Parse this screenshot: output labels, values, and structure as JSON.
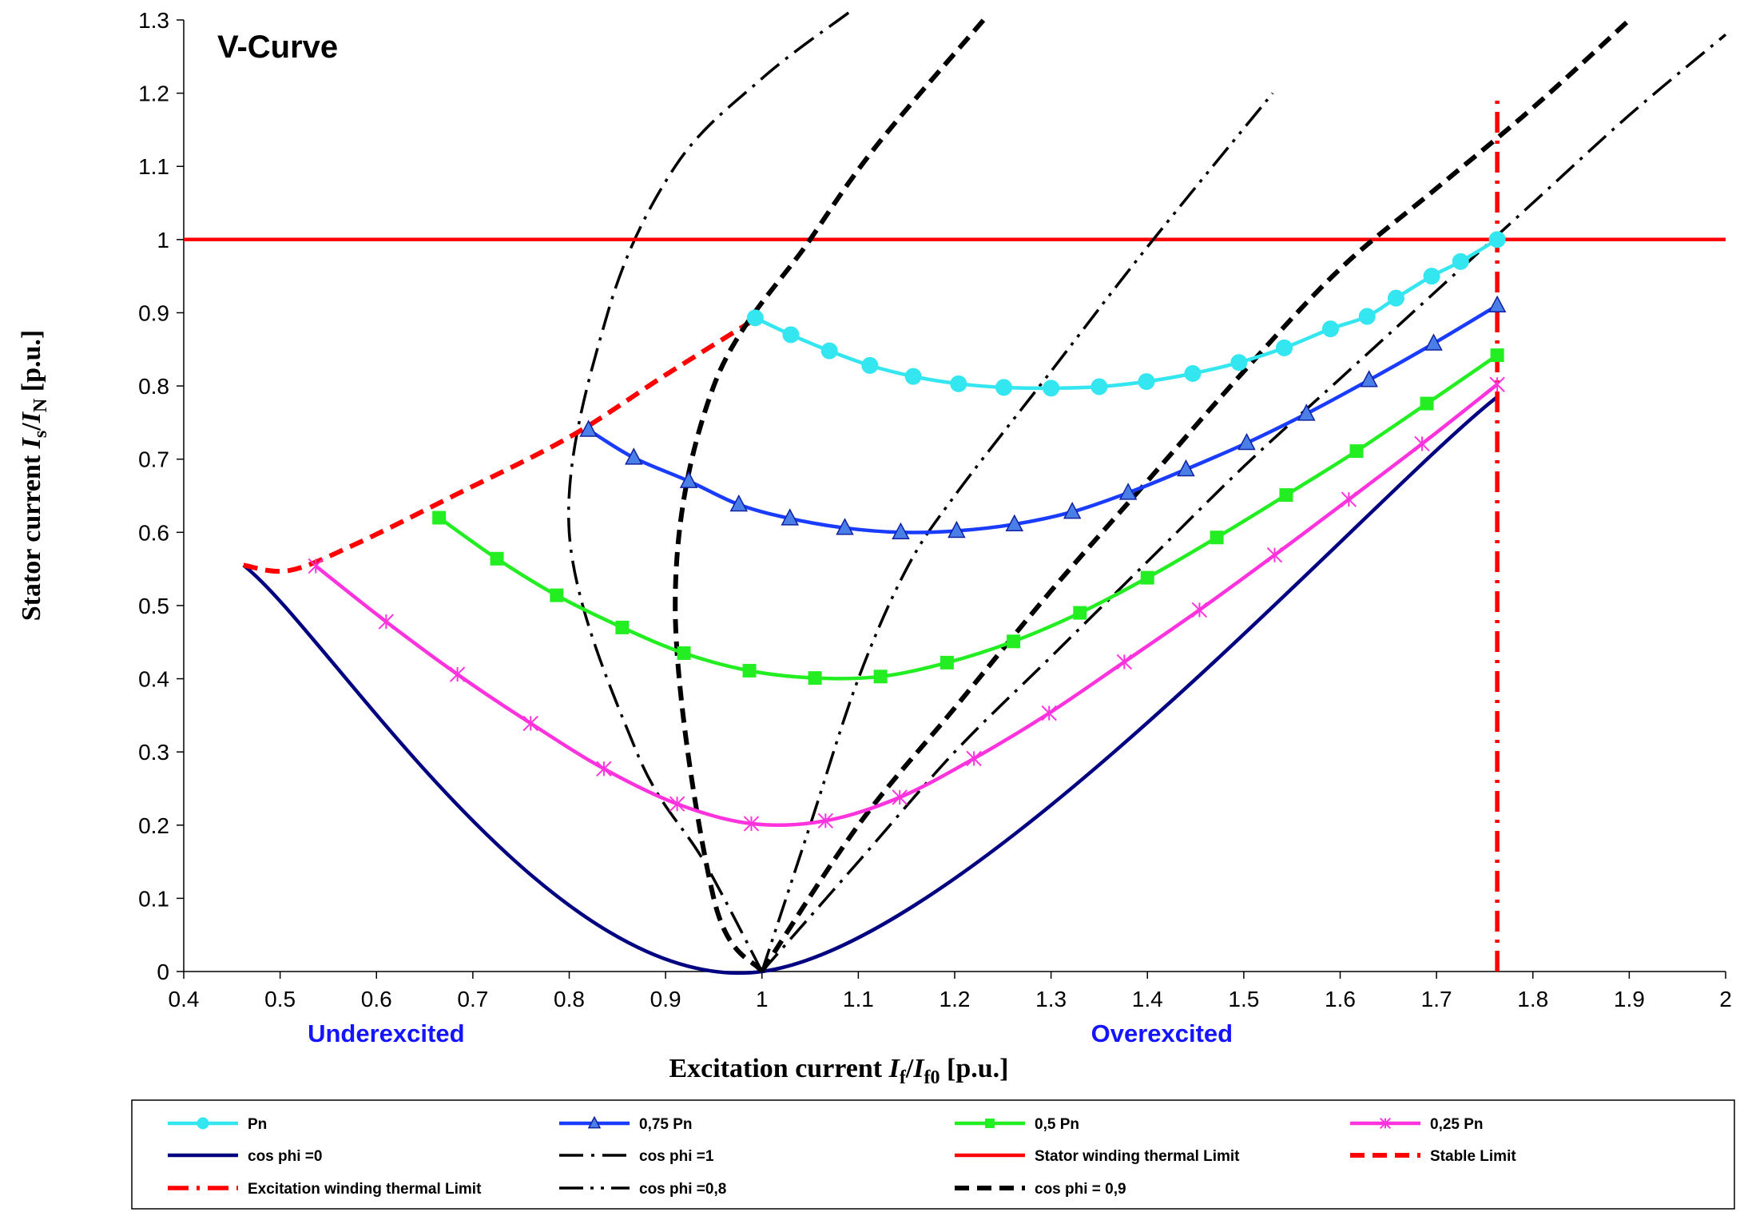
{
  "chart_data": {
    "type": "line",
    "title": "V-Curve",
    "xlabel": {
      "pre": "Excitation current ",
      "v1": "I",
      "s1": "f",
      "mid": "/",
      "v2": "I",
      "s2": "f0",
      "post": " [p.u.]"
    },
    "ylabel": {
      "pre": "Stator current  ",
      "v1": "I",
      "s1": "s",
      "mid": "/",
      "v2": "I",
      "s2": "N",
      "post": " [p.u.]"
    },
    "xlim": [
      0.4,
      2.0
    ],
    "ylim": [
      0,
      1.3
    ],
    "x_ticks": [
      "0.4",
      "0.5",
      "0.6",
      "0.7",
      "0.8",
      "0.9",
      "1",
      "1.1",
      "1.2",
      "1.3",
      "1.4",
      "1.5",
      "1.6",
      "1.7",
      "1.8",
      "1.9",
      "2"
    ],
    "y_ticks": [
      "0",
      "0.1",
      "0.2",
      "0.3",
      "0.4",
      "0.5",
      "0.6",
      "0.7",
      "0.8",
      "0.9",
      "1",
      "1.1",
      "1.2",
      "1.3"
    ],
    "grid": false,
    "legend_position": "bottom",
    "annotations": [
      {
        "text": "Underexcited",
        "x": 0.61,
        "y": -0.1,
        "color": "#1414ff"
      },
      {
        "text": "Overexcited",
        "x": 1.415,
        "y": -0.1,
        "color": "#1414ff"
      }
    ],
    "series": [
      {
        "name": "Pn",
        "color": "#33e6f0",
        "marker": "circle",
        "x": [
          0.993,
          1.03,
          1.07,
          1.112,
          1.157,
          1.204,
          1.251,
          1.3,
          1.35,
          1.399,
          1.447,
          1.495,
          1.542,
          1.59,
          1.628,
          1.658,
          1.695,
          1.725,
          1.763
        ],
        "y": [
          0.893,
          0.87,
          0.848,
          0.828,
          0.813,
          0.803,
          0.798,
          0.797,
          0.799,
          0.806,
          0.817,
          0.832,
          0.852,
          0.878,
          0.895,
          0.92,
          0.95,
          0.97,
          1.0
        ]
      },
      {
        "name": "0,75 Pn",
        "color": "#1a3cff",
        "marker": "triangle",
        "x": [
          0.82,
          0.867,
          0.924,
          0.976,
          1.029,
          1.086,
          1.144,
          1.202,
          1.262,
          1.322,
          1.38,
          1.44,
          1.503,
          1.565,
          1.63,
          1.697,
          1.763
        ],
        "y": [
          0.74,
          0.702,
          0.67,
          0.638,
          0.619,
          0.606,
          0.6,
          0.602,
          0.611,
          0.628,
          0.654,
          0.686,
          0.722,
          0.762,
          0.808,
          0.858,
          0.91
        ]
      },
      {
        "name": "0,5 Pn",
        "color": "#22ee22",
        "marker": "square",
        "x": [
          0.665,
          0.725,
          0.787,
          0.855,
          0.919,
          0.987,
          1.055,
          1.123,
          1.192,
          1.261,
          1.33,
          1.4,
          1.472,
          1.544,
          1.617,
          1.69,
          1.763
        ],
        "y": [
          0.62,
          0.564,
          0.514,
          0.47,
          0.435,
          0.411,
          0.401,
          0.403,
          0.422,
          0.451,
          0.49,
          0.538,
          0.593,
          0.651,
          0.711,
          0.776,
          0.842
        ]
      },
      {
        "name": "0,25 Pn",
        "color": "#ff33dd",
        "marker": "asterisk",
        "x": [
          0.537,
          0.61,
          0.684,
          0.76,
          0.836,
          0.912,
          0.989,
          1.066,
          1.143,
          1.22,
          1.298,
          1.376,
          1.454,
          1.532,
          1.609,
          1.685,
          1.763
        ],
        "y": [
          0.554,
          0.478,
          0.406,
          0.339,
          0.277,
          0.229,
          0.202,
          0.206,
          0.238,
          0.291,
          0.353,
          0.423,
          0.494,
          0.569,
          0.645,
          0.721,
          0.802
        ]
      },
      {
        "name": "cos phi =0",
        "color": "#000080",
        "dash": "solid",
        "x": [
          0.462,
          1.0,
          1.763
        ],
        "y": [
          0.555,
          0.0,
          0.785
        ]
      },
      {
        "name": "cos phi =1",
        "color": "#000000",
        "dash": "dashdot",
        "x": [
          1.0,
          0.94,
          0.87,
          0.8,
          0.84,
          0.91,
          1.0,
          1.09
        ],
        "y": [
          0.0,
          0.15,
          0.3,
          0.6,
          0.9,
          1.1,
          1.22,
          1.31
        ]
      },
      {
        "name": "Stator winding thermal Limit",
        "color": "#ff0000",
        "dash": "solid",
        "x": [
          0.4,
          2.0
        ],
        "y": [
          1.0,
          1.0
        ]
      },
      {
        "name": "Stable Limit",
        "color": "#ff0000",
        "dash": "dashed",
        "x": [
          0.462,
          0.51,
          0.58,
          0.68,
          0.8,
          0.9,
          0.995
        ],
        "y": [
          0.555,
          0.548,
          0.585,
          0.65,
          0.73,
          0.815,
          0.893
        ]
      },
      {
        "name": "Excitation winding thermal Limit",
        "color": "#ff0000",
        "dash": "dashdotbold",
        "x": [
          1.763,
          1.763
        ],
        "y": [
          0.0,
          1.19
        ]
      },
      {
        "name": "cos phi =0,8",
        "color": "#000000",
        "dash": "dashdotdot",
        "x": [
          1.0,
          1.05,
          1.1,
          1.15,
          1.2,
          1.3,
          1.4,
          1.53
        ],
        "y": [
          0.0,
          0.2,
          0.4,
          0.55,
          0.65,
          0.82,
          0.99,
          1.2
        ]
      },
      {
        "name": "cos phi = 0,9",
        "color": "#000000",
        "dash": "dashed",
        "x": [
          1.0,
          0.95,
          0.91,
          0.95,
          1.05,
          1.12,
          1.23
        ],
        "y": [
          0.0,
          0.1,
          0.5,
          0.8,
          1.0,
          1.13,
          1.3
        ]
      },
      {
        "name": "",
        "color": "#000000",
        "dash": "dashed",
        "x": [
          1.0,
          1.1,
          1.2,
          1.3,
          1.4,
          1.5,
          1.6,
          1.7,
          1.8,
          1.9
        ],
        "y": [
          0.0,
          0.2,
          0.36,
          0.52,
          0.67,
          0.82,
          0.96,
          1.07,
          1.18,
          1.3
        ]
      },
      {
        "name": "",
        "color": "#000000",
        "dash": "dashdot",
        "x": [
          1.0,
          1.1,
          1.2,
          1.3,
          1.4,
          1.5,
          1.6,
          1.7,
          1.8,
          1.9,
          2.0
        ],
        "y": [
          0.0,
          0.15,
          0.3,
          0.43,
          0.56,
          0.69,
          0.81,
          0.93,
          1.05,
          1.17,
          1.28
        ]
      }
    ]
  }
}
